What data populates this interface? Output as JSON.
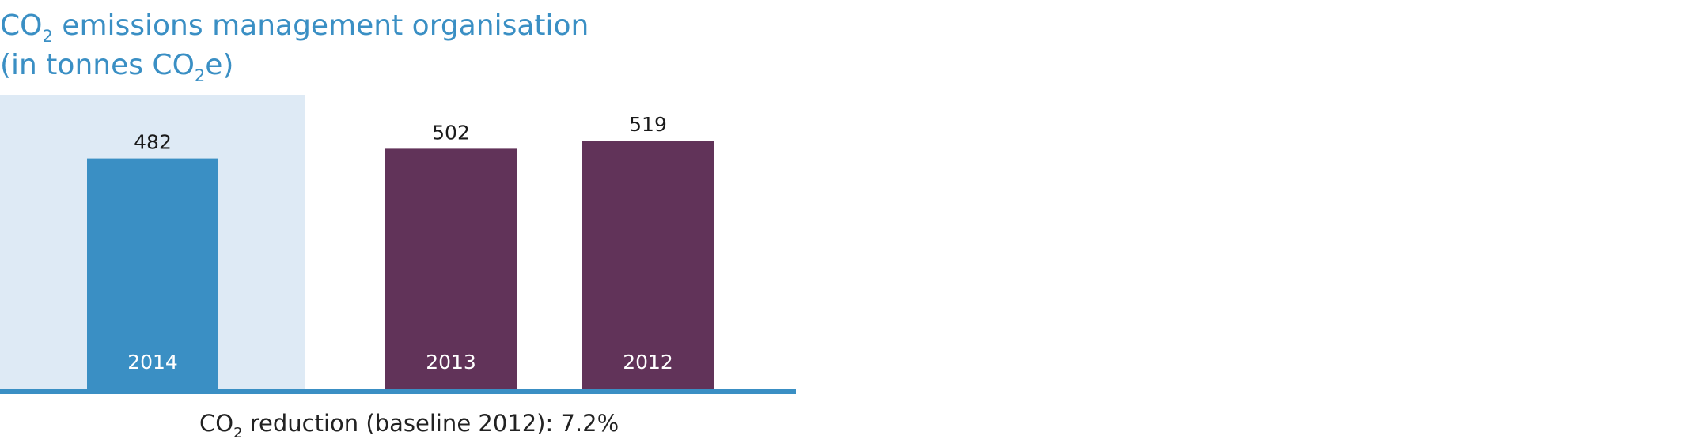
{
  "chart_data": {
    "type": "bar",
    "title": {
      "line1_prefix": "CO",
      "line1_sub": "2",
      "line1_rest": " emissions management organisation",
      "line2_prefix": "(in tonnes CO",
      "line2_sub": "2",
      "line2_rest": "e)"
    },
    "categories": [
      "2014",
      "2013",
      "2012"
    ],
    "values": [
      482,
      502,
      519
    ],
    "value_labels": [
      "482",
      "502",
      "519"
    ],
    "highlight_category": "2014",
    "ylim": [
      0,
      519
    ],
    "xlabel": "",
    "ylabel": "",
    "grid": false,
    "footnote": {
      "prefix": "CO",
      "sub": "2",
      "rest": " reduction (baseline 2012): 7.2%"
    }
  },
  "colors": {
    "title": "#3a8fc4",
    "highlight_background": "#deeaf5",
    "current_bar": "#3a8fc4",
    "previous_bars": "#613359",
    "axis_line": "#3a8fc4"
  }
}
